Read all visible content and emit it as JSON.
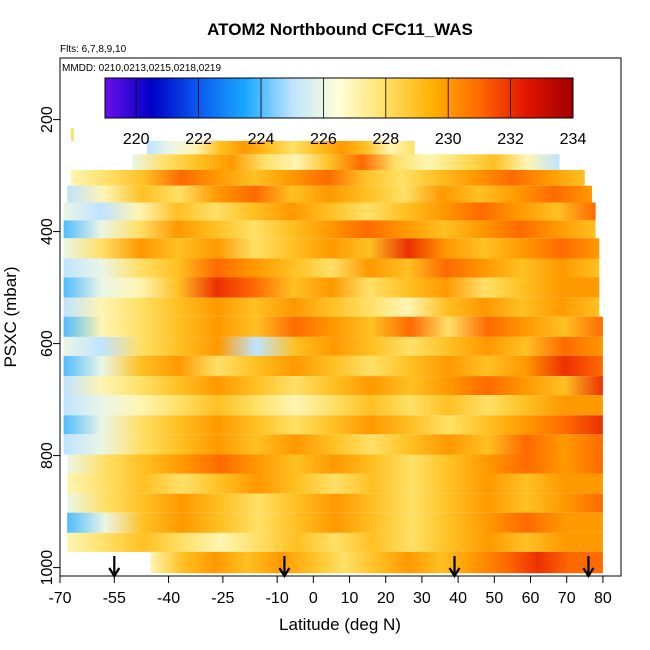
{
  "chart_data": {
    "type": "heatmap",
    "title": "ATOM2 Northbound CFC11_WAS",
    "flights_note": "Flts: 6,7,8,9,10",
    "dates_note": "MMDD: 0210,0213,0215,0218,0219",
    "xlabel": "Latitude (deg N)",
    "ylabel": "PSXC (mbar)",
    "xlim": [
      -70,
      85
    ],
    "ylim": [
      1015,
      90
    ],
    "x_ticks": [
      -70,
      -55,
      -40,
      -25,
      -10,
      0,
      10,
      20,
      30,
      40,
      50,
      60,
      70,
      80
    ],
    "x_tick_labels": [
      "-70",
      "-55",
      "-40",
      "-25",
      "-10",
      "0",
      "10",
      "20",
      "30",
      "40",
      "50",
      "60",
      "70",
      "80"
    ],
    "y_ticks": [
      200,
      400,
      600,
      800,
      1000
    ],
    "y_tick_labels": [
      "200",
      "400",
      "600",
      "800",
      "1000"
    ],
    "colorbar": {
      "range": [
        219,
        234
      ],
      "ticks": [
        220,
        222,
        224,
        226,
        228,
        230,
        232,
        234
      ],
      "tick_labels": [
        "220",
        "222",
        "224",
        "226",
        "228",
        "230",
        "232",
        "234"
      ],
      "colors": [
        "#6a10e8",
        "#0000c8",
        "#0a5af0",
        "#1aa8ff",
        "#bfe4ff",
        "#ffffd8",
        "#ffe066",
        "#ffb000",
        "#ff6a00",
        "#e21400",
        "#a00000"
      ]
    },
    "profile_markers_lat": [
      -55,
      -8,
      39,
      76
    ],
    "bands": [
      {
        "p_top": 215,
        "p_bot": 238,
        "lat_start": -67,
        "lat_end": -67,
        "values": [
          228
        ]
      },
      {
        "p_top": 238,
        "p_bot": 262,
        "lat_start": -46,
        "lat_end": 28,
        "values": [
          225,
          226,
          227,
          229,
          230,
          229,
          228,
          229,
          230,
          229,
          227,
          228
        ]
      },
      {
        "p_top": 262,
        "p_bot": 290,
        "lat_start": -50,
        "lat_end": 68,
        "values": [
          226,
          228,
          229,
          230,
          228,
          227,
          229,
          231,
          228,
          227,
          228,
          229,
          227,
          225
        ]
      },
      {
        "p_top": 290,
        "p_bot": 318,
        "lat_start": -67,
        "lat_end": 75,
        "values": [
          227,
          228,
          229,
          231,
          230,
          229,
          230,
          231,
          229,
          228,
          229,
          230,
          231,
          230,
          229
        ]
      },
      {
        "p_top": 318,
        "p_bot": 348,
        "lat_start": -68,
        "lat_end": 77,
        "values": [
          225,
          227,
          229,
          228,
          230,
          231,
          229,
          230,
          229,
          228,
          230,
          229,
          230,
          231,
          230
        ]
      },
      {
        "p_top": 348,
        "p_bot": 380,
        "lat_start": -69,
        "lat_end": 78,
        "values": [
          226,
          225,
          227,
          229,
          228,
          229,
          230,
          229,
          228,
          229,
          230,
          231,
          230,
          229,
          231
        ]
      },
      {
        "p_top": 380,
        "p_bot": 412,
        "lat_start": -69,
        "lat_end": 78,
        "values": [
          224,
          226,
          228,
          230,
          229,
          228,
          229,
          230,
          231,
          230,
          229,
          230,
          231,
          230,
          229
        ]
      },
      {
        "p_top": 412,
        "p_bot": 448,
        "lat_start": -69,
        "lat_end": 79,
        "values": [
          226,
          228,
          230,
          229,
          230,
          228,
          229,
          230,
          229,
          232,
          230,
          229,
          230,
          231,
          230
        ]
      },
      {
        "p_top": 448,
        "p_bot": 482,
        "lat_start": -69,
        "lat_end": 79,
        "values": [
          225,
          226,
          228,
          229,
          231,
          230,
          229,
          228,
          230,
          229,
          231,
          230,
          229,
          230,
          229
        ]
      },
      {
        "p_top": 482,
        "p_bot": 518,
        "lat_start": -69,
        "lat_end": 79,
        "values": [
          224,
          226,
          227,
          229,
          232,
          231,
          229,
          230,
          228,
          229,
          230,
          228,
          229,
          230,
          230
        ]
      },
      {
        "p_top": 518,
        "p_bot": 552,
        "lat_start": -69,
        "lat_end": 79,
        "values": [
          225,
          227,
          228,
          229,
          230,
          229,
          230,
          229,
          228,
          227,
          229,
          230,
          229,
          230,
          229
        ]
      },
      {
        "p_top": 552,
        "p_bot": 588,
        "lat_start": -69,
        "lat_end": 80,
        "values": [
          224,
          227,
          228,
          229,
          230,
          229,
          231,
          230,
          229,
          231,
          228,
          231,
          230,
          229,
          231
        ]
      },
      {
        "p_top": 588,
        "p_bot": 622,
        "lat_start": -69,
        "lat_end": 80,
        "values": [
          226,
          225,
          228,
          229,
          230,
          225,
          229,
          230,
          229,
          228,
          229,
          230,
          229,
          231,
          230
        ]
      },
      {
        "p_top": 622,
        "p_bot": 658,
        "lat_start": -69,
        "lat_end": 80,
        "values": [
          224,
          226,
          229,
          230,
          228,
          229,
          230,
          229,
          228,
          229,
          230,
          229,
          230,
          232,
          231
        ]
      },
      {
        "p_top": 658,
        "p_bot": 692,
        "lat_start": -69,
        "lat_end": 80,
        "values": [
          225,
          227,
          228,
          229,
          230,
          229,
          228,
          229,
          230,
          229,
          230,
          231,
          230,
          229,
          232
        ]
      },
      {
        "p_top": 692,
        "p_bot": 728,
        "lat_start": -69,
        "lat_end": 80,
        "values": [
          225,
          226,
          227,
          228,
          229,
          228,
          227,
          228,
          229,
          228,
          229,
          228,
          229,
          230,
          230
        ]
      },
      {
        "p_top": 728,
        "p_bot": 762,
        "lat_start": -69,
        "lat_end": 80,
        "values": [
          224,
          226,
          228,
          229,
          230,
          229,
          228,
          229,
          230,
          229,
          228,
          229,
          230,
          231,
          232
        ]
      },
      {
        "p_top": 762,
        "p_bot": 798,
        "lat_start": -69,
        "lat_end": 80,
        "values": [
          225,
          226,
          228,
          229,
          230,
          229,
          230,
          229,
          228,
          229,
          230,
          229,
          231,
          230,
          231
        ]
      },
      {
        "p_top": 798,
        "p_bot": 832,
        "lat_start": -68,
        "lat_end": 80,
        "values": [
          226,
          228,
          229,
          230,
          231,
          230,
          229,
          230,
          229,
          228,
          229,
          230,
          231,
          230,
          231
        ]
      },
      {
        "p_top": 832,
        "p_bot": 868,
        "lat_start": -68,
        "lat_end": 80,
        "values": [
          227,
          228,
          229,
          228,
          229,
          230,
          229,
          228,
          229,
          228,
          229,
          230,
          229,
          230,
          230
        ]
      },
      {
        "p_top": 868,
        "p_bot": 902,
        "lat_start": -68,
        "lat_end": 80,
        "values": [
          226,
          228,
          229,
          230,
          229,
          228,
          229,
          230,
          229,
          228,
          229,
          230,
          229,
          230,
          231
        ]
      },
      {
        "p_top": 902,
        "p_bot": 938,
        "lat_start": -68,
        "lat_end": 80,
        "values": [
          224,
          226,
          229,
          230,
          229,
          228,
          229,
          230,
          229,
          228,
          229,
          230,
          231,
          230,
          230
        ]
      },
      {
        "p_top": 938,
        "p_bot": 972,
        "lat_start": -68,
        "lat_end": 80,
        "values": [
          227,
          228,
          229,
          228,
          227,
          228,
          229,
          228,
          229,
          228,
          229,
          230,
          229,
          230,
          230
        ]
      },
      {
        "p_top": 972,
        "p_bot": 1010,
        "lat_start": -45,
        "lat_end": 80,
        "values": [
          227,
          229,
          230,
          229,
          230,
          229,
          228,
          229,
          230,
          229,
          230,
          231,
          232,
          231,
          231
        ]
      }
    ]
  }
}
